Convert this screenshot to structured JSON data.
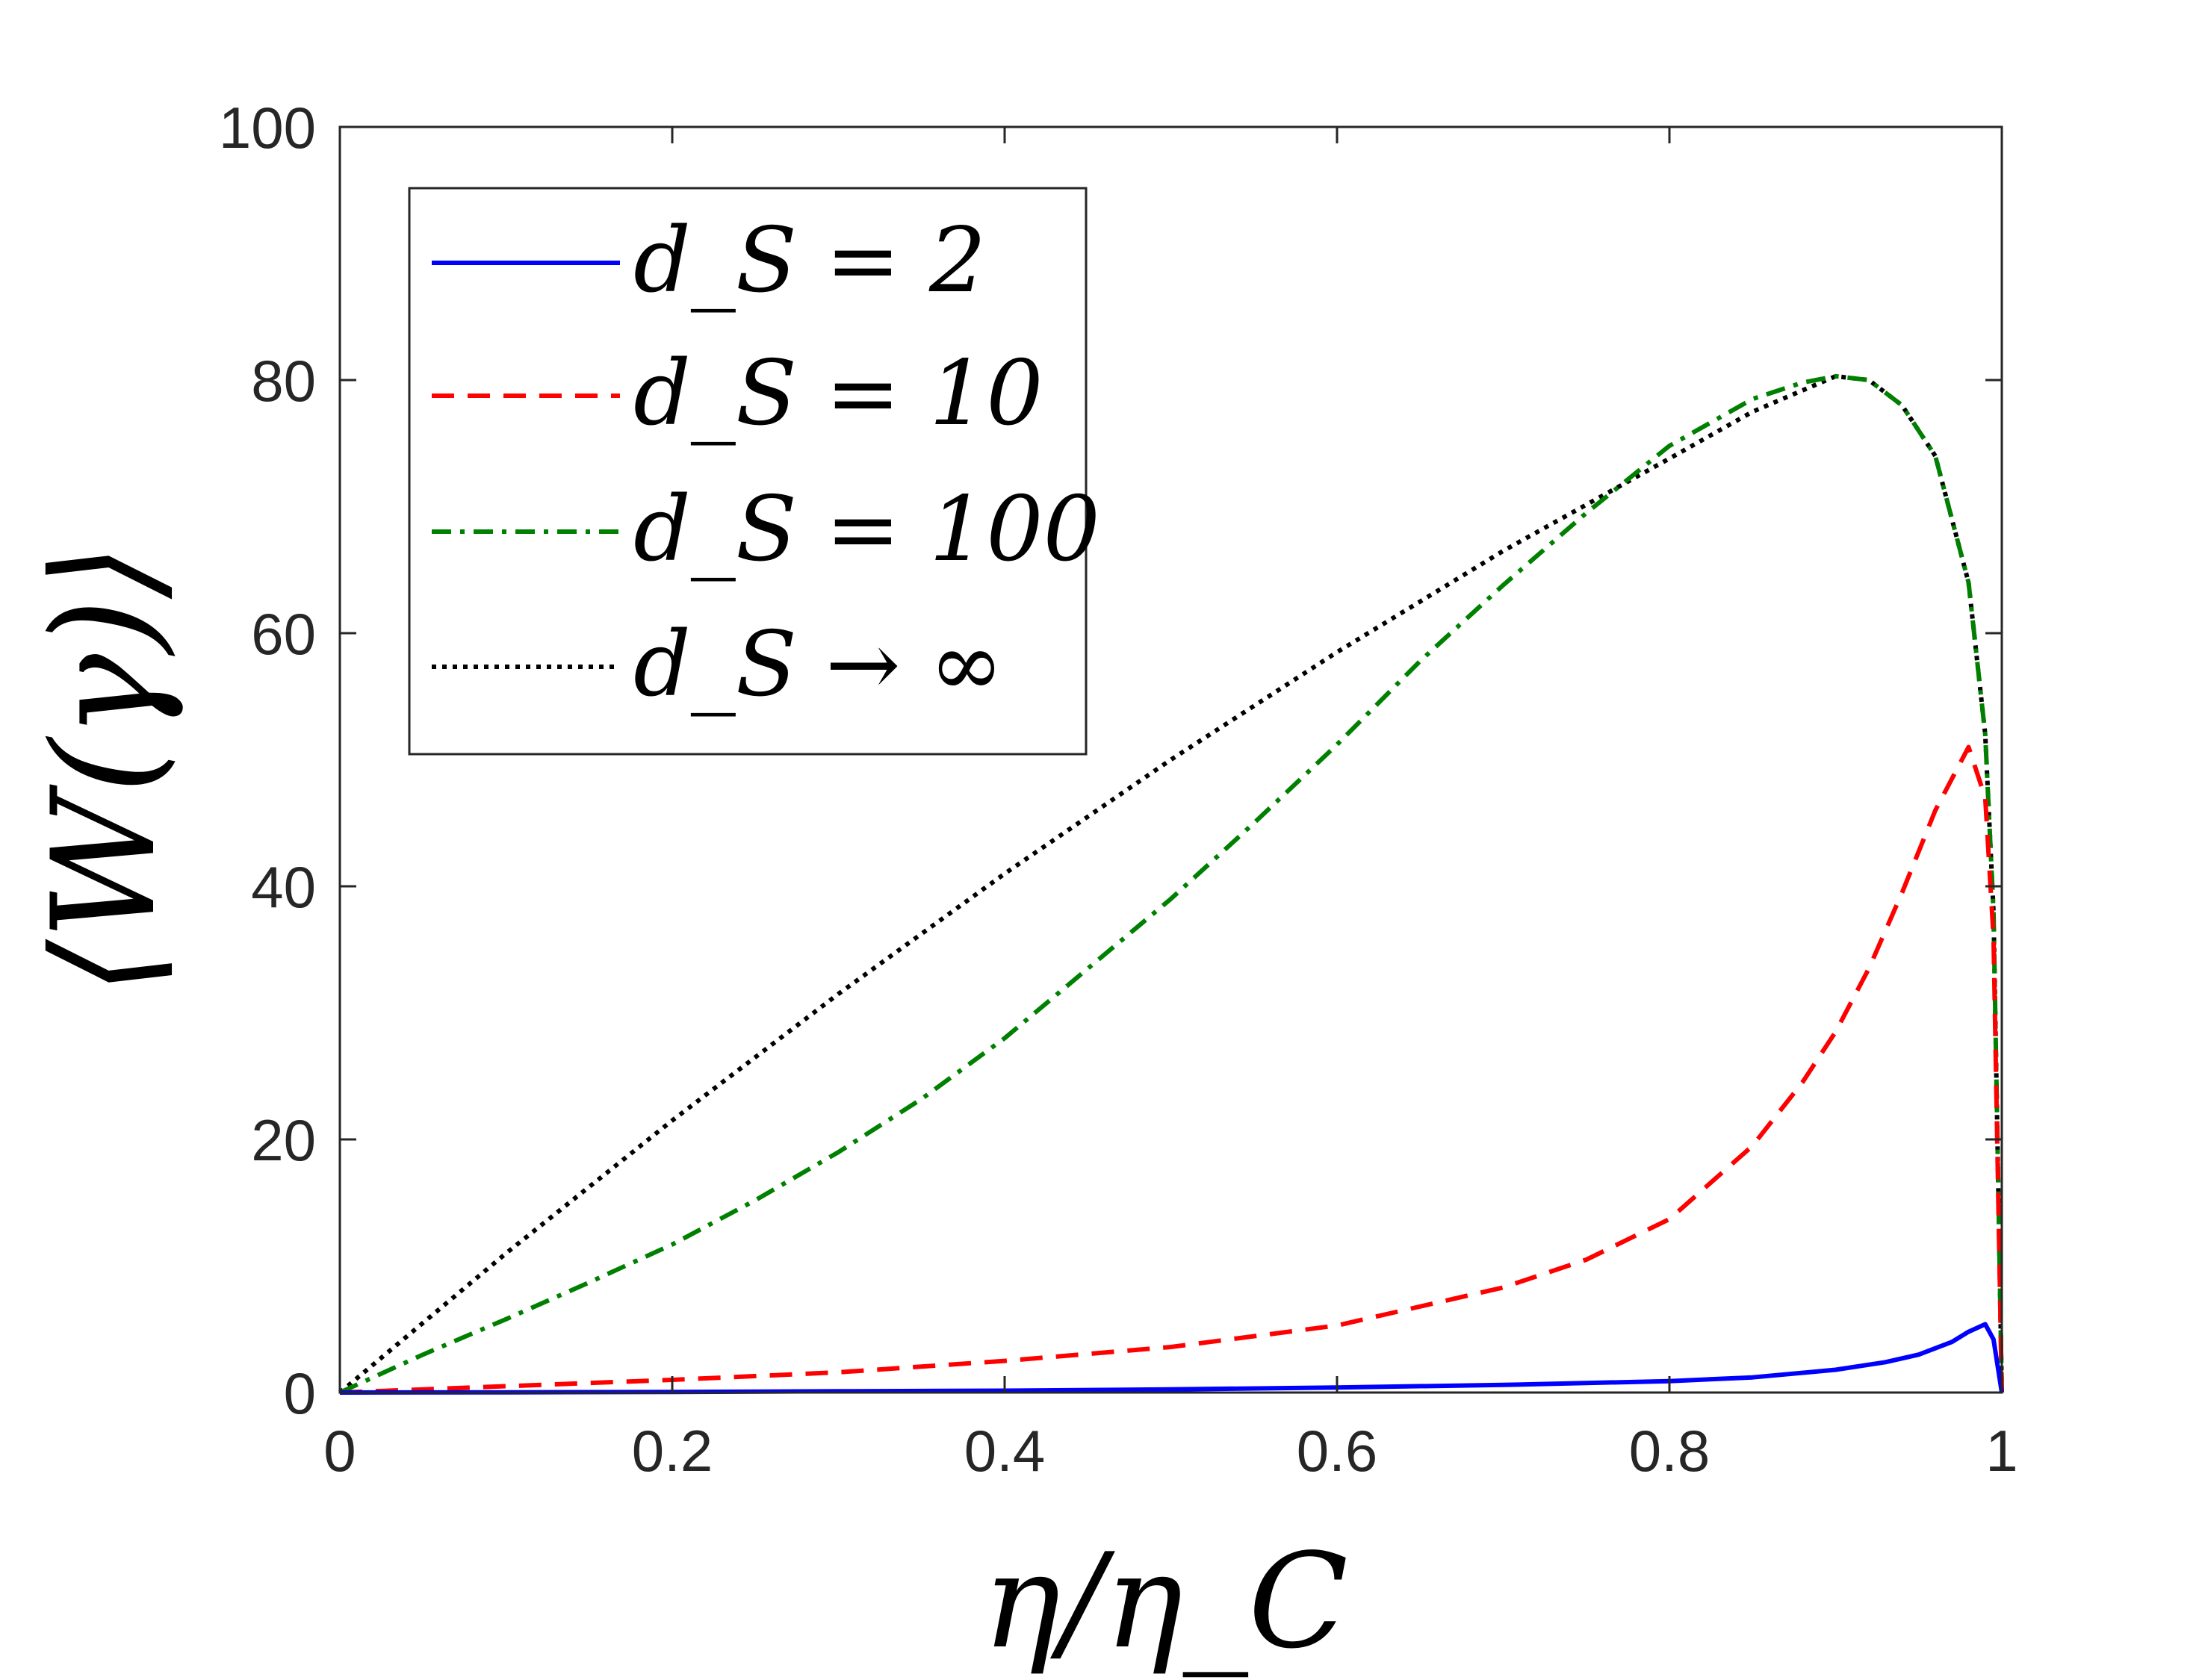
{
  "chart_data": {
    "type": "line",
    "xlabel": "η/η_C",
    "ylabel": "⟨W(γ)⟩",
    "xlim": [
      0,
      1
    ],
    "ylim": [
      0,
      100
    ],
    "x_ticks": [
      0,
      0.2,
      0.4,
      0.6,
      0.8,
      1
    ],
    "x_tick_labels": [
      "0",
      "0.2",
      "0.4",
      "0.6",
      "0.8",
      "1"
    ],
    "y_ticks": [
      0,
      20,
      40,
      60,
      80,
      100
    ],
    "y_tick_labels": [
      "0",
      "20",
      "40",
      "60",
      "80",
      "100"
    ],
    "grid": false,
    "legend_position": "top-left",
    "series": [
      {
        "name": "d_S = 2",
        "legend_label": "d_S = 2",
        "color": "#0000FF",
        "style": "solid",
        "x": [
          0,
          0.1,
          0.2,
          0.3,
          0.4,
          0.5,
          0.6,
          0.7,
          0.8,
          0.85,
          0.9,
          0.93,
          0.95,
          0.97,
          0.98,
          0.99,
          0.995,
          1.0
        ],
        "y": [
          0,
          0.02,
          0.05,
          0.1,
          0.15,
          0.25,
          0.4,
          0.6,
          0.9,
          1.2,
          1.8,
          2.4,
          3.0,
          4.0,
          4.8,
          5.4,
          4.2,
          0
        ]
      },
      {
        "name": "d_S = 10",
        "legend_label": "d_S = 10",
        "color": "#FF0000",
        "style": "dashed",
        "x": [
          0,
          0.1,
          0.2,
          0.3,
          0.4,
          0.5,
          0.6,
          0.7,
          0.75,
          0.8,
          0.85,
          0.88,
          0.9,
          0.92,
          0.94,
          0.96,
          0.98,
          0.99,
          0.995,
          1.0
        ],
        "y": [
          0,
          0.5,
          1.0,
          1.6,
          2.5,
          3.6,
          5.3,
          8.3,
          10.5,
          13.7,
          19.5,
          24.5,
          28.5,
          33.5,
          39.5,
          46.0,
          51.0,
          47.0,
          36.0,
          0
        ]
      },
      {
        "name": "d_S = 100",
        "legend_label": "d_S = 100",
        "color": "#008000",
        "style": "dashdot",
        "x": [
          0,
          0.05,
          0.1,
          0.15,
          0.2,
          0.25,
          0.3,
          0.35,
          0.4,
          0.45,
          0.5,
          0.55,
          0.6,
          0.65,
          0.7,
          0.75,
          0.8,
          0.85,
          0.88,
          0.9,
          0.92,
          0.94,
          0.96,
          0.98,
          0.99,
          0.995,
          1.0
        ],
        "y": [
          0,
          3.0,
          5.8,
          8.7,
          11.7,
          15.2,
          19.0,
          23.2,
          28.0,
          33.5,
          39.0,
          45.0,
          51.2,
          57.8,
          63.8,
          69.5,
          74.8,
          78.5,
          79.8,
          80.3,
          80.0,
          78.0,
          74.0,
          64.0,
          52.0,
          38.0,
          0
        ]
      },
      {
        "name": "d_S → ∞",
        "legend_label": "d_S → ∞",
        "color": "#000000",
        "style": "dotted",
        "x": [
          0,
          0.1,
          0.2,
          0.3,
          0.4,
          0.5,
          0.6,
          0.7,
          0.8,
          0.85,
          0.9,
          0.92,
          0.94,
          0.96,
          0.98,
          0.99,
          0.995,
          1.0
        ],
        "y": [
          0,
          11.0,
          21.5,
          31.5,
          41.0,
          50.0,
          58.5,
          66.5,
          73.8,
          77.5,
          80.3,
          80.0,
          78.0,
          74.0,
          64.0,
          52.0,
          38.0,
          0
        ]
      }
    ]
  }
}
